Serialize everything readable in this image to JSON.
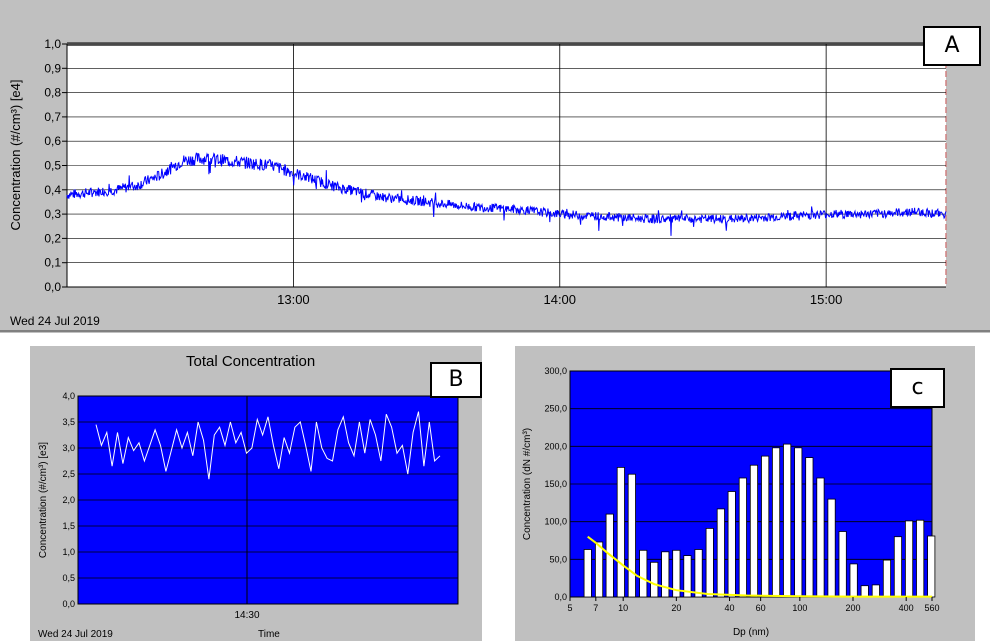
{
  "chart_data": [
    {
      "id": "A",
      "type": "line",
      "panel_label": "A",
      "ylabel": "Concentration (#/cm³) [e4]",
      "date_label": "Wed 24 Jul 2019",
      "x_range": [
        "12:09",
        "15:27"
      ],
      "ylim": [
        0,
        1.0
      ],
      "yticks": [
        "0,0",
        "0,1",
        "0,2",
        "0,3",
        "0,4",
        "0,5",
        "0,6",
        "0,7",
        "0,8",
        "0,9",
        "1,0"
      ],
      "xticks": [
        "13:00",
        "14:00",
        "15:00"
      ],
      "grid": true,
      "line_color": "#0000ff",
      "x": [
        "12:09",
        "12:15",
        "12:20",
        "12:25",
        "12:30",
        "12:35",
        "12:40",
        "12:45",
        "12:50",
        "12:55",
        "13:00",
        "13:05",
        "13:10",
        "13:15",
        "13:20",
        "13:30",
        "13:40",
        "13:50",
        "14:00",
        "14:10",
        "14:20",
        "14:30",
        "14:40",
        "14:50",
        "15:00",
        "15:10",
        "15:20",
        "15:27"
      ],
      "values": [
        0.38,
        0.39,
        0.4,
        0.42,
        0.46,
        0.52,
        0.53,
        0.52,
        0.51,
        0.5,
        0.47,
        0.44,
        0.41,
        0.39,
        0.37,
        0.35,
        0.33,
        0.32,
        0.3,
        0.29,
        0.28,
        0.28,
        0.28,
        0.29,
        0.3,
        0.3,
        0.31,
        0.3
      ]
    },
    {
      "id": "B",
      "type": "line",
      "panel_label": "B",
      "title": "Total Concentration",
      "ylabel": "Concentration (#/cm³) [e3]",
      "xlabel": "Time",
      "date_label": "Wed 24 Jul 2019",
      "ylim": [
        0,
        4.0
      ],
      "yticks": [
        "0,0",
        "0,5",
        "1,0",
        "1,5",
        "2,0",
        "2,5",
        "3,0",
        "3,5",
        "4,0"
      ],
      "xticks": [
        "14:30"
      ],
      "grid": true,
      "background": "#0000ff",
      "line_color": "#ffffff",
      "values": [
        3.45,
        3.05,
        3.3,
        2.65,
        3.3,
        2.7,
        3.2,
        2.95,
        3.1,
        2.75,
        3.05,
        3.35,
        3.05,
        2.55,
        2.95,
        3.35,
        3.0,
        3.3,
        2.85,
        3.5,
        3.15,
        2.4,
        3.25,
        3.4,
        3.05,
        3.5,
        3.1,
        3.3,
        2.9,
        3.0,
        3.55,
        3.25,
        3.6,
        3.05,
        2.6,
        3.2,
        2.9,
        3.4,
        3.5,
        3.05,
        2.55,
        3.5,
        3.0,
        2.8,
        2.75,
        3.35,
        3.6,
        3.1,
        2.85,
        3.5,
        2.9,
        3.55,
        3.25,
        2.75,
        3.65,
        3.4,
        2.9,
        3.05,
        2.5,
        3.3,
        3.7,
        2.65,
        3.5,
        2.75,
        2.85
      ]
    },
    {
      "id": "C",
      "type": "bar",
      "panel_label": "c",
      "ylabel": "Concentration (dN #/cm³)",
      "xlabel": "Dp (nm)",
      "x_scale": "log",
      "xlim": [
        5,
        560
      ],
      "ylim": [
        0,
        300
      ],
      "yticks": [
        "0,0",
        "50,0",
        "100,0",
        "150,0",
        "200,0",
        "250,0",
        "300,0"
      ],
      "xticks": [
        "5",
        "7",
        "10",
        "20",
        "40",
        "60",
        "100",
        "200",
        "400",
        "560"
      ],
      "grid": true,
      "background": "#0000ff",
      "bar_color": "#ffffff",
      "curve_color": "#ffff00",
      "categories": [
        6.3,
        7.3,
        8.4,
        9.7,
        11.2,
        13.0,
        15.0,
        17.3,
        20.0,
        23.1,
        26.7,
        30.9,
        35.7,
        41.2,
        47.6,
        55.0,
        63.6,
        73.4,
        84.8,
        98.0,
        113.2,
        130.8,
        151.2,
        174.7,
        201.8,
        233.2,
        269.4,
        311.2,
        359.5,
        415.5,
        479.9,
        554.5
      ],
      "values": [
        63,
        73,
        110,
        172,
        163,
        62,
        46,
        60,
        62,
        55,
        63,
        91,
        117,
        140,
        158,
        175,
        187,
        198,
        203,
        198,
        185,
        158,
        130,
        87,
        44,
        15,
        16,
        49,
        80,
        101,
        102,
        81
      ],
      "curve_x": [
        6.3,
        7,
        8,
        10,
        12,
        15,
        20,
        30,
        50,
        100,
        200,
        560
      ],
      "curve_y": [
        80,
        72,
        60,
        42,
        28,
        17,
        9,
        4,
        2,
        1,
        0.5,
        0.5
      ]
    }
  ]
}
